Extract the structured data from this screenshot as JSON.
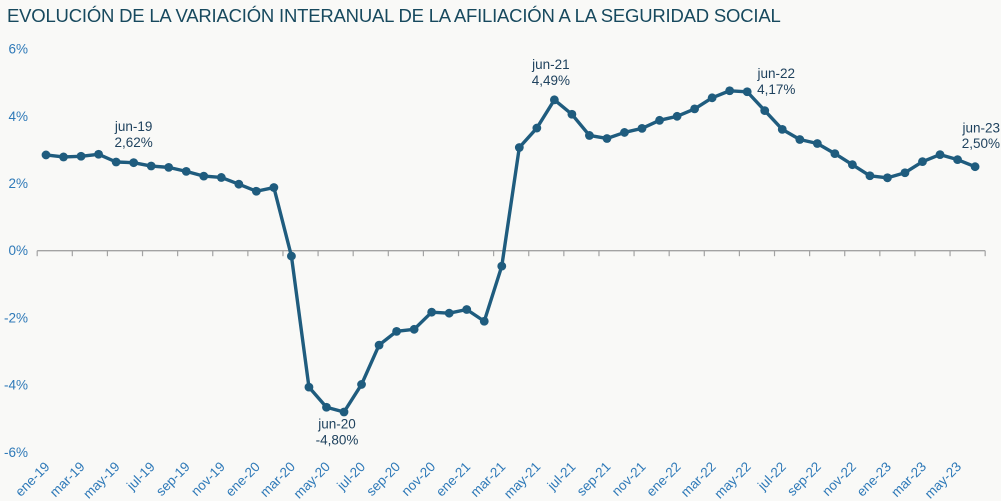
{
  "chart_data": {
    "type": "line",
    "title": "EVOLUCIÓN DE LA VARIACIÓN INTERANUAL DE LA AFILIACIÓN A LA SEGURIDAD SOCIAL",
    "xlabel": "",
    "ylabel": "",
    "ylim": [
      -6,
      6
    ],
    "grid": false,
    "legend": "none",
    "x_start": "ene-19",
    "x_end": "jun-23",
    "x_tick_labels": [
      "ene-19",
      "mar-19",
      "may-19",
      "jul-19",
      "sep-19",
      "nov-19",
      "ene-20",
      "mar-20",
      "may-20",
      "jul-20",
      "sep-20",
      "nov-20",
      "ene-21",
      "mar-21",
      "may-21",
      "jul-21",
      "sep-21",
      "nov-21",
      "ene-22",
      "mar-22",
      "may-22",
      "jul-22",
      "sep-22",
      "nov-22",
      "ene-23",
      "mar-23",
      "may-23"
    ],
    "y_tick_labels": [
      "6%",
      "4%",
      "2%",
      "0%",
      "-2%",
      "-4%",
      "-6%"
    ],
    "series_name": "Variación interanual de la afiliación",
    "values": [
      2.85,
      2.79,
      2.81,
      2.87,
      2.64,
      2.62,
      2.52,
      2.48,
      2.36,
      2.22,
      2.18,
      1.98,
      1.77,
      1.88,
      -0.16,
      -4.06,
      -4.66,
      -4.8,
      -3.98,
      -2.81,
      -2.4,
      -2.34,
      -1.83,
      -1.86,
      -1.75,
      -2.1,
      -0.46,
      3.07,
      3.65,
      4.49,
      4.06,
      3.43,
      3.34,
      3.52,
      3.64,
      3.88,
      4.0,
      4.22,
      4.55,
      4.76,
      4.73,
      4.17,
      3.61,
      3.31,
      3.19,
      2.89,
      2.56,
      2.23,
      2.17,
      2.32,
      2.65,
      2.86,
      2.71,
      2.5
    ],
    "annotations": [
      {
        "label": "jun-19",
        "value": "2,62%",
        "index": 5,
        "dx": 0,
        "dy1": -31.5,
        "dy2": -15.5,
        "anchor": "middle"
      },
      {
        "label": "jun-20",
        "value": "-4,80%",
        "index": 17,
        "dx": -7,
        "dy1": 16.5,
        "dy2": 32.5,
        "anchor": "middle"
      },
      {
        "label": "jun-21",
        "value": "4,49%",
        "index": 29,
        "dx": -3.5,
        "dy1": -31,
        "dy2": -15,
        "anchor": "middle"
      },
      {
        "label": "jun-22",
        "value": "4,17%",
        "index": 41,
        "dx": 11.5,
        "dy1": -32.5,
        "dy2": -16.5,
        "anchor": "middle"
      },
      {
        "label": "jun-23",
        "value": "2,50%",
        "index": 53,
        "dx": 24.9,
        "dy1": -34,
        "dy2": -18.5,
        "anchor": "end"
      }
    ],
    "colors": {
      "line": "#1f5c7e",
      "axis": "#a3a3a3",
      "tick_label": "#2e79b8",
      "annotation": "#1f425e",
      "title": "#17495e",
      "background": "#f9f9f7"
    }
  }
}
